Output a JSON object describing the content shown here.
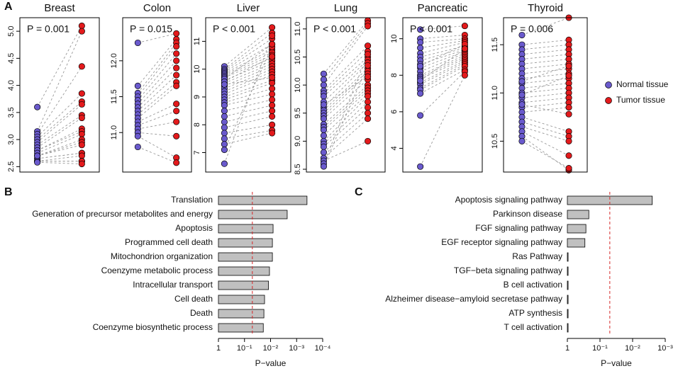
{
  "legend": [
    {
      "name": "Normal tissue",
      "color": "#6a5acd"
    },
    {
      "name": "Tumor tissue",
      "color": "#e31a1c"
    }
  ],
  "chart_data": [
    {
      "type": "paired_dot",
      "panel_label": "A",
      "title": "Breast",
      "annotation": "P = 0.001",
      "ylim": [
        2.4,
        5.25
      ],
      "yticks": [
        2.5,
        {
          "value": 3,
          "label": "3.0"
        },
        3.5,
        {
          "value": 4,
          "label": "4.0"
        },
        4.5,
        {
          "value": 5,
          "label": "5.0"
        }
      ],
      "normal": [
        3.6,
        3.15,
        3.1,
        3.05,
        3.0,
        2.95,
        2.9,
        2.85,
        2.8,
        2.8,
        2.75,
        2.7,
        2.7,
        2.65,
        2.65,
        2.6,
        2.6,
        2.6,
        2.58,
        2.7
      ],
      "tumor": [
        5.1,
        5.0,
        4.35,
        3.85,
        3.7,
        3.65,
        3.45,
        3.4,
        3.2,
        3.15,
        3.1,
        3.0,
        2.95,
        2.75,
        2.75,
        2.7,
        2.6,
        2.6,
        2.55,
        2.9
      ]
    },
    {
      "type": "paired_dot",
      "title": "Colon",
      "annotation": "P = 0.015",
      "ylim": [
        10.45,
        12.6
      ],
      "yticks": [
        {
          "value": 11,
          "label": "11.0"
        },
        11.5,
        {
          "value": 12,
          "label": "12.0"
        }
      ],
      "normal": [
        12.25,
        11.65,
        11.55,
        11.5,
        11.45,
        11.4,
        11.35,
        11.3,
        11.25,
        11.2,
        11.15,
        11.1,
        11.05,
        11.0,
        10.95,
        10.8
      ],
      "tumor": [
        12.38,
        12.3,
        12.25,
        12.2,
        12.1,
        12.0,
        11.9,
        11.8,
        11.7,
        11.65,
        11.4,
        11.3,
        11.15,
        10.95,
        10.65,
        10.58
      ]
    },
    {
      "type": "paired_dot",
      "title": "Liver",
      "annotation": "P < 0.001",
      "ylim": [
        6.3,
        11.85
      ],
      "yticks": [
        7,
        8,
        9,
        10,
        11
      ],
      "normal": [
        10.1,
        10.0,
        9.95,
        9.9,
        9.85,
        9.8,
        9.75,
        9.7,
        9.6,
        9.5,
        9.4,
        9.3,
        9.2,
        9.1,
        9.0,
        8.9,
        8.8,
        8.7,
        8.5,
        8.3,
        8.1,
        7.9,
        7.7,
        7.5,
        7.3,
        7.1,
        6.6,
        9.65,
        9.55,
        9.45
      ],
      "tumor": [
        11.5,
        11.3,
        11.1,
        10.9,
        10.7,
        10.6,
        10.5,
        10.4,
        10.3,
        10.2,
        10.1,
        10.0,
        9.9,
        9.8,
        9.6,
        9.5,
        9.3,
        9.1,
        8.9,
        8.7,
        8.5,
        8.3,
        8.0,
        7.8,
        7.7,
        10.8,
        11.2,
        10.9,
        10.45,
        9.7
      ]
    },
    {
      "type": "paired_dot",
      "title": "Lung",
      "annotation": "P < 0.001",
      "ylim": [
        8.45,
        11.2
      ],
      "yticks": [
        8.5,
        {
          "value": 9,
          "label": "9.0"
        },
        9.5,
        {
          "value": 10,
          "label": "10.0"
        },
        10.5,
        {
          "value": 11,
          "label": "11.0"
        }
      ],
      "normal": [
        10.2,
        10.1,
        10.0,
        9.9,
        9.85,
        9.8,
        9.7,
        9.6,
        9.55,
        9.5,
        9.45,
        9.4,
        9.3,
        9.25,
        9.2,
        9.1,
        9.0,
        8.95,
        8.9,
        8.8,
        8.7,
        8.65,
        8.6,
        8.55,
        9.65
      ],
      "tumor": [
        11.15,
        11.1,
        11.05,
        10.7,
        10.6,
        10.5,
        10.45,
        10.4,
        10.3,
        10.25,
        10.2,
        10.1,
        10.0,
        9.95,
        9.9,
        9.85,
        9.8,
        9.7,
        9.6,
        9.5,
        9.4,
        9.0,
        10.55,
        10.35,
        10.15
      ]
    },
    {
      "type": "paired_dot",
      "title": "Pancreatic",
      "annotation": "P < 0.001",
      "ylim": [
        2.7,
        11.15
      ],
      "yticks": [
        4,
        6,
        8,
        10
      ],
      "normal": [
        10.5,
        10.0,
        9.8,
        9.5,
        9.2,
        9.0,
        8.8,
        8.6,
        8.4,
        8.2,
        8.0,
        7.9,
        7.8,
        7.6,
        7.5,
        7.3,
        7.2,
        7.0,
        5.8,
        3.0,
        8.5,
        7.7
      ],
      "tumor": [
        10.7,
        10.2,
        10.0,
        9.9,
        9.8,
        9.6,
        9.5,
        9.4,
        9.3,
        9.2,
        9.1,
        9.0,
        8.9,
        8.8,
        8.7,
        8.6,
        8.5,
        8.3,
        8.2,
        8.0,
        9.7,
        9.45
      ]
    },
    {
      "type": "paired_dot",
      "title": "Thyroid",
      "annotation": "P = 0.006",
      "ylim": [
        10.18,
        11.78
      ],
      "yticks": [
        10.5,
        {
          "value": 11,
          "label": "11.0"
        },
        11.5
      ],
      "normal": [
        11.6,
        11.5,
        11.45,
        11.4,
        11.35,
        11.3,
        11.25,
        11.2,
        11.15,
        11.1,
        11.05,
        11.0,
        10.95,
        10.9,
        10.85,
        10.8,
        10.75,
        10.7,
        10.65,
        10.6,
        10.55,
        10.5,
        11.12,
        10.98,
        10.88
      ],
      "tumor": [
        11.78,
        11.55,
        11.5,
        11.45,
        11.4,
        11.35,
        11.3,
        11.25,
        11.2,
        11.15,
        11.1,
        11.05,
        11.0,
        10.95,
        10.9,
        10.85,
        10.6,
        10.55,
        10.5,
        10.35,
        10.2,
        10.22,
        11.28,
        11.18,
        10.78
      ]
    },
    {
      "type": "hbar_log",
      "panel_label": "B",
      "x_label": "P−value",
      "log_scale": true,
      "color": "#c0c0c0",
      "threshold": 0.05,
      "categories": [
        "Translation",
        "Generation of precursor metabolites and energy",
        "Apoptosis",
        "Programmed cell death",
        "Mitochondrion organization",
        "Coenzyme metabolic process",
        "Intracellular transport",
        "Cell death",
        "Death",
        "Coenzyme biosynthetic process"
      ],
      "values": [
        0.0004,
        0.0023,
        0.008,
        0.0085,
        0.0085,
        0.011,
        0.012,
        0.017,
        0.018,
        0.019
      ],
      "xlim": [
        1,
        0.0001
      ],
      "xticks": [
        1,
        {
          "value": 0.1,
          "label": "10⁻¹"
        },
        {
          "value": 0.01,
          "label": "10⁻²"
        },
        {
          "value": 0.001,
          "label": "10⁻³"
        },
        {
          "value": 0.0001,
          "label": "10⁻⁴"
        }
      ]
    },
    {
      "type": "hbar_log",
      "panel_label": "C",
      "x_label": "P−value",
      "log_scale": true,
      "color": "#c0c0c0",
      "threshold": 0.05,
      "categories": [
        "Apoptosis signaling pathway",
        "Parkinson disease",
        "FGF signaling pathway",
        "EGF receptor signaling pathway",
        "Ras Pathway",
        "TGF−beta signaling pathway",
        "B cell activation",
        "Alzheimer disease−amyloid secretase pathway",
        "ATP synthesis",
        "T cell activation"
      ],
      "values": [
        0.0025,
        0.22,
        0.27,
        0.29,
        0.95,
        0.95,
        0.95,
        0.95,
        0.95,
        0.95
      ],
      "xlim": [
        1,
        0.001
      ],
      "xticks": [
        1,
        {
          "value": 0.1,
          "label": "10⁻¹"
        },
        {
          "value": 0.01,
          "label": "10⁻²"
        },
        {
          "value": 0.001,
          "label": "10⁻³"
        }
      ]
    }
  ]
}
